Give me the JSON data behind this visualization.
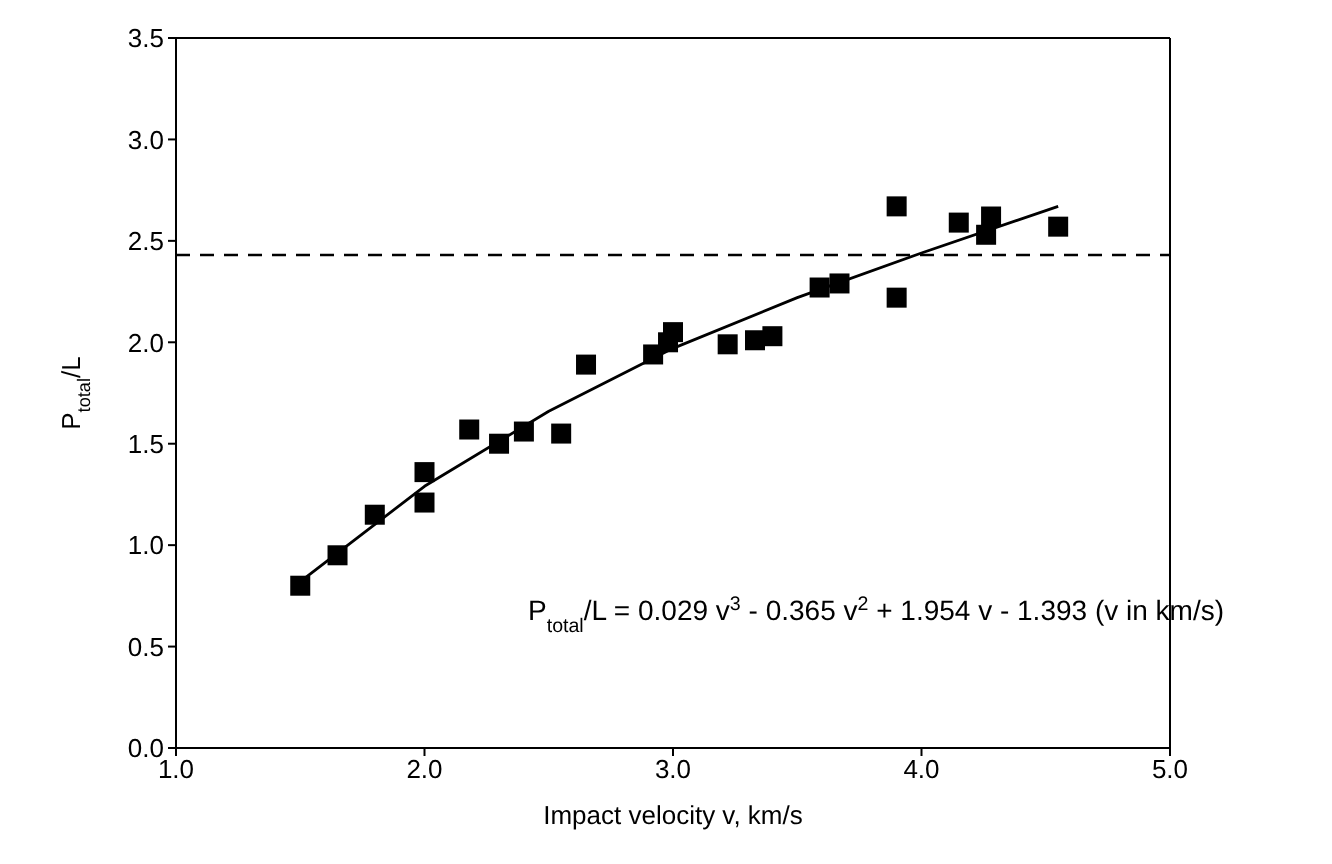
{
  "chart_data": {
    "type": "scatter",
    "xlabel": "Impact velocity v, km/s",
    "ylabel": "P$_{total}$/L",
    "annotations": [
      "P$_{total}$/L = 0.029 v$^{3}$ - 0.365 v$^{2}$ + 1.954 v - 1.393  (v in km/s)"
    ],
    "xlim": [
      1,
      5
    ],
    "xticks": [
      {
        "value": 1,
        "label": "1.0"
      },
      {
        "value": 2,
        "label": "2.0"
      },
      {
        "value": 3,
        "label": "3.0"
      },
      {
        "value": 4,
        "label": "4.0"
      },
      {
        "value": 5,
        "label": "5.0"
      }
    ],
    "ylim": [
      0,
      3.5
    ],
    "yticks": [
      {
        "value": 0,
        "label": "0.0"
      },
      {
        "value": 0.5,
        "label": "0.5"
      },
      {
        "value": 1,
        "label": "1.0"
      },
      {
        "value": 1.5,
        "label": "1.5"
      },
      {
        "value": 2,
        "label": "2.0"
      },
      {
        "value": 2.5,
        "label": "2.5"
      },
      {
        "value": 3,
        "label": "3.0"
      },
      {
        "value": 3.5,
        "label": "3.5"
      }
    ],
    "marker": "square",
    "ref_lines": [
      {
        "axis": "y",
        "value": 2.43,
        "color": "#000000",
        "line_style": "dashed"
      }
    ],
    "series": [
      {
        "color": "#000000",
        "x": [
          1.5,
          1.65,
          1.8,
          2.0,
          2.0,
          2.18,
          2.3,
          2.4,
          2.55,
          2.65,
          2.92,
          2.98,
          3.0,
          3.22,
          3.33,
          3.4,
          3.59,
          3.67,
          3.9,
          3.9,
          4.15,
          4.26,
          4.28,
          4.55
        ],
        "values": [
          0.8,
          0.95,
          1.15,
          1.21,
          1.36,
          1.57,
          1.5,
          1.56,
          1.55,
          1.89,
          1.94,
          2.0,
          2.05,
          1.99,
          2.01,
          2.03,
          2.27,
          2.29,
          2.67,
          2.22,
          2.59,
          2.53,
          2.62,
          2.57
        ]
      },
      {
        "type": "line",
        "color": "#000000",
        "marker": "none",
        "x": [
          1.5,
          2.0,
          2.5,
          3.0,
          3.5,
          4.0,
          4.55
        ],
        "values": [
          0.82,
          1.29,
          1.66,
          1.97,
          2.22,
          2.44,
          2.67
        ]
      }
    ]
  }
}
